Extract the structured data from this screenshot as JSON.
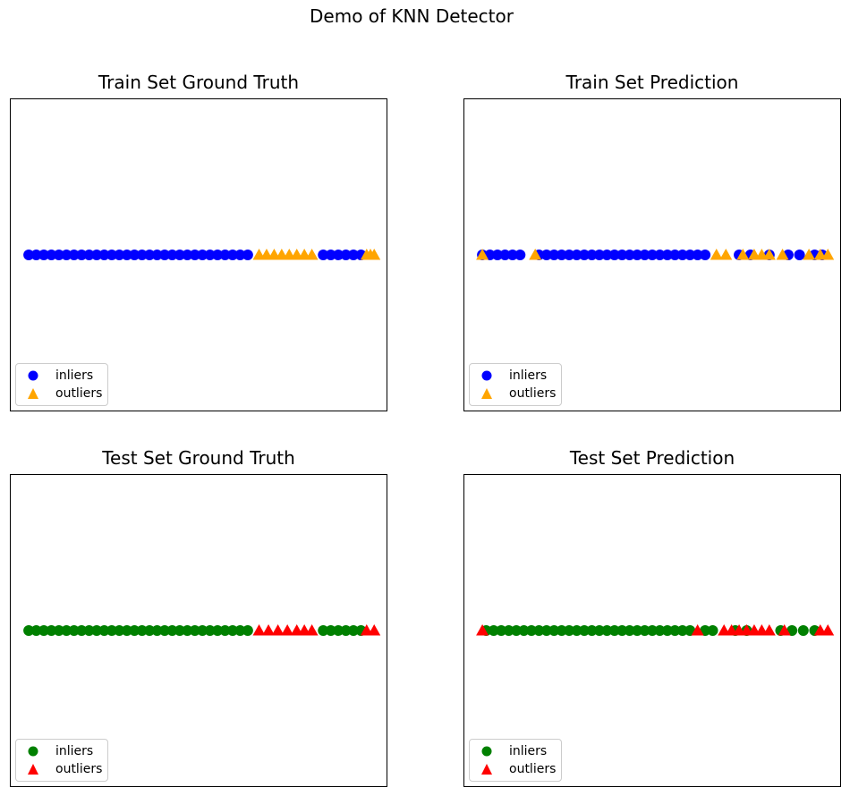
{
  "suptitle": "Demo of KNN Detector",
  "legend_labels": {
    "inliers": "inliers",
    "outliers": "outliers"
  },
  "colors": {
    "train_inlier": "#0000ff",
    "train_outlier": "#ffa500",
    "test_inlier": "#008000",
    "test_outlier": "#ff0000"
  },
  "chart_data": [
    {
      "type": "scatter",
      "title": "Train Set Ground Truth",
      "xlim": [
        0,
        1
      ],
      "ylim": [
        -1,
        1
      ],
      "grid": false,
      "legend_loc": "lower-left",
      "series": [
        {
          "name": "inliers",
          "marker": "circle",
          "color": "#0000ff",
          "x": [
            0.05,
            0.07,
            0.09,
            0.11,
            0.13,
            0.15,
            0.17,
            0.19,
            0.21,
            0.23,
            0.25,
            0.27,
            0.29,
            0.31,
            0.33,
            0.35,
            0.37,
            0.39,
            0.41,
            0.43,
            0.45,
            0.47,
            0.49,
            0.51,
            0.53,
            0.55,
            0.57,
            0.59,
            0.61,
            0.63,
            0.83,
            0.85,
            0.87,
            0.89,
            0.91,
            0.93
          ],
          "y": [
            0,
            0,
            0,
            0,
            0,
            0,
            0,
            0,
            0,
            0,
            0,
            0,
            0,
            0,
            0,
            0,
            0,
            0,
            0,
            0,
            0,
            0,
            0,
            0,
            0,
            0,
            0,
            0,
            0,
            0,
            0,
            0,
            0,
            0,
            0,
            0
          ]
        },
        {
          "name": "outliers",
          "marker": "triangle",
          "color": "#ffa500",
          "x": [
            0.66,
            0.68,
            0.7,
            0.72,
            0.74,
            0.76,
            0.78,
            0.8,
            0.945,
            0.955,
            0.965
          ],
          "y": [
            0,
            0,
            0,
            0,
            0,
            0,
            0,
            0,
            0,
            0,
            0
          ]
        }
      ]
    },
    {
      "type": "scatter",
      "title": "Train Set Prediction",
      "xlim": [
        0,
        1
      ],
      "ylim": [
        -1,
        1
      ],
      "grid": false,
      "legend_loc": "lower-left",
      "series": [
        {
          "name": "inliers",
          "marker": "circle",
          "color": "#0000ff",
          "x": [
            0.05,
            0.07,
            0.09,
            0.11,
            0.13,
            0.15,
            0.2,
            0.22,
            0.24,
            0.26,
            0.28,
            0.3,
            0.32,
            0.34,
            0.36,
            0.38,
            0.4,
            0.42,
            0.44,
            0.46,
            0.48,
            0.5,
            0.52,
            0.54,
            0.56,
            0.58,
            0.6,
            0.62,
            0.64,
            0.73,
            0.76,
            0.81,
            0.86,
            0.89,
            0.93,
            0.95
          ],
          "y": [
            0,
            0,
            0,
            0,
            0,
            0,
            0,
            0,
            0,
            0,
            0,
            0,
            0,
            0,
            0,
            0,
            0,
            0,
            0,
            0,
            0,
            0,
            0,
            0,
            0,
            0,
            0,
            0,
            0,
            0,
            0,
            0,
            0,
            0,
            0,
            0
          ]
        },
        {
          "name": "outliers",
          "marker": "triangle",
          "color": "#ffa500",
          "x": [
            0.05,
            0.19,
            0.67,
            0.695,
            0.74,
            0.77,
            0.79,
            0.81,
            0.845,
            0.915,
            0.945,
            0.965
          ],
          "y": [
            0,
            0,
            0,
            0,
            0,
            0,
            0,
            0,
            0,
            0,
            0,
            0
          ]
        }
      ]
    },
    {
      "type": "scatter",
      "title": "Test Set Ground Truth",
      "xlim": [
        0,
        1
      ],
      "ylim": [
        -1,
        1
      ],
      "grid": false,
      "legend_loc": "lower-left",
      "series": [
        {
          "name": "inliers",
          "marker": "circle",
          "color": "#008000",
          "x": [
            0.05,
            0.07,
            0.09,
            0.11,
            0.13,
            0.15,
            0.17,
            0.19,
            0.21,
            0.23,
            0.25,
            0.27,
            0.29,
            0.31,
            0.33,
            0.35,
            0.37,
            0.39,
            0.41,
            0.43,
            0.45,
            0.47,
            0.49,
            0.51,
            0.53,
            0.55,
            0.57,
            0.59,
            0.61,
            0.63,
            0.83,
            0.85,
            0.87,
            0.89,
            0.91,
            0.93
          ],
          "y": [
            0,
            0,
            0,
            0,
            0,
            0,
            0,
            0,
            0,
            0,
            0,
            0,
            0,
            0,
            0,
            0,
            0,
            0,
            0,
            0,
            0,
            0,
            0,
            0,
            0,
            0,
            0,
            0,
            0,
            0,
            0,
            0,
            0,
            0,
            0,
            0
          ]
        },
        {
          "name": "outliers",
          "marker": "triangle",
          "color": "#ff0000",
          "x": [
            0.66,
            0.685,
            0.71,
            0.735,
            0.76,
            0.78,
            0.8,
            0.945,
            0.965
          ],
          "y": [
            0,
            0,
            0,
            0,
            0,
            0,
            0,
            0,
            0
          ]
        }
      ]
    },
    {
      "type": "scatter",
      "title": "Test Set Prediction",
      "xlim": [
        0,
        1
      ],
      "ylim": [
        -1,
        1
      ],
      "grid": false,
      "legend_loc": "lower-left",
      "series": [
        {
          "name": "inliers",
          "marker": "circle",
          "color": "#008000",
          "x": [
            0.06,
            0.08,
            0.1,
            0.12,
            0.14,
            0.16,
            0.18,
            0.2,
            0.22,
            0.24,
            0.26,
            0.28,
            0.3,
            0.32,
            0.34,
            0.36,
            0.38,
            0.4,
            0.42,
            0.44,
            0.46,
            0.48,
            0.5,
            0.52,
            0.54,
            0.56,
            0.58,
            0.6,
            0.64,
            0.66,
            0.72,
            0.75,
            0.84,
            0.87,
            0.9,
            0.93
          ],
          "y": [
            0,
            0,
            0,
            0,
            0,
            0,
            0,
            0,
            0,
            0,
            0,
            0,
            0,
            0,
            0,
            0,
            0,
            0,
            0,
            0,
            0,
            0,
            0,
            0,
            0,
            0,
            0,
            0,
            0,
            0,
            0,
            0,
            0,
            0,
            0,
            0
          ]
        },
        {
          "name": "outliers",
          "marker": "triangle",
          "color": "#ff0000",
          "x": [
            0.05,
            0.62,
            0.69,
            0.71,
            0.73,
            0.75,
            0.77,
            0.79,
            0.81,
            0.85,
            0.945,
            0.965
          ],
          "y": [
            0,
            0,
            0,
            0,
            0,
            0,
            0,
            0,
            0,
            0,
            0,
            0
          ]
        }
      ]
    }
  ]
}
